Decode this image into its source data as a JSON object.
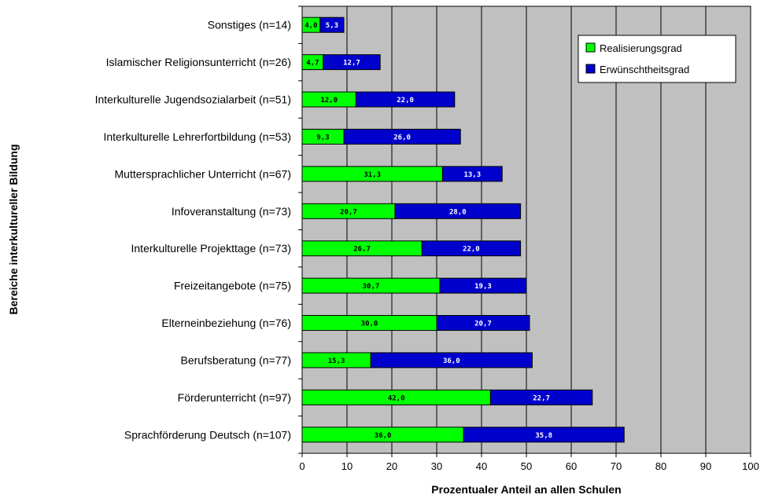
{
  "chart_data": {
    "type": "bar",
    "orientation": "horizontal",
    "stacked": true,
    "categories": [
      "Sonstiges (n=14)",
      "Islamischer Religionsunterricht (n=26)",
      "Interkulturelle Jugendsozialarbeit (n=51)",
      "Interkulturelle Lehrerfortbildung (n=53)",
      "Muttersprachlicher Unterricht (n=67)",
      "Infoveranstaltung (n=73)",
      "Interkulturelle Projekttage (n=73)",
      "Freizeitangebote (n=75)",
      "Elterneinbeziehung (n=76)",
      "Berufsberatung (n=77)",
      "Förderunterricht (n=97)",
      "Sprachförderung Deutsch (n=107)"
    ],
    "series": [
      {
        "name": "Realisierungsgrad",
        "color": "#00ff00",
        "values": [
          4.0,
          4.7,
          12.0,
          9.3,
          31.3,
          20.7,
          26.7,
          30.7,
          30.0,
          15.3,
          42.0,
          36.0
        ],
        "labels": [
          "4,0",
          "4,7",
          "12,0",
          "9,3",
          "31,3",
          "20,7",
          "26,7",
          "30,7",
          "30,0",
          "15,3",
          "42,0",
          "36,0"
        ]
      },
      {
        "name": "Erwünschtheitsgrad",
        "color": "#0000cc",
        "values": [
          5.3,
          12.7,
          22.0,
          26.0,
          13.3,
          28.0,
          22.0,
          19.3,
          20.7,
          36.0,
          22.7,
          35.8
        ],
        "labels": [
          "5,3",
          "12,7",
          "22,0",
          "26,0",
          "13,3",
          "28,0",
          "22,0",
          "19,3",
          "20,7",
          "36,0",
          "22,7",
          "35,8"
        ]
      }
    ],
    "xlabel": "Prozentualer Anteil an allen Schulen",
    "ylabel": "Bereiche interkultureller Bildung",
    "xlim": [
      0,
      100
    ],
    "xticks": [
      0,
      10,
      20,
      30,
      40,
      50,
      60,
      70,
      80,
      90,
      100
    ],
    "grid": "vertical",
    "legend_position": "top-right",
    "plot_background": "#c0c0c0"
  }
}
